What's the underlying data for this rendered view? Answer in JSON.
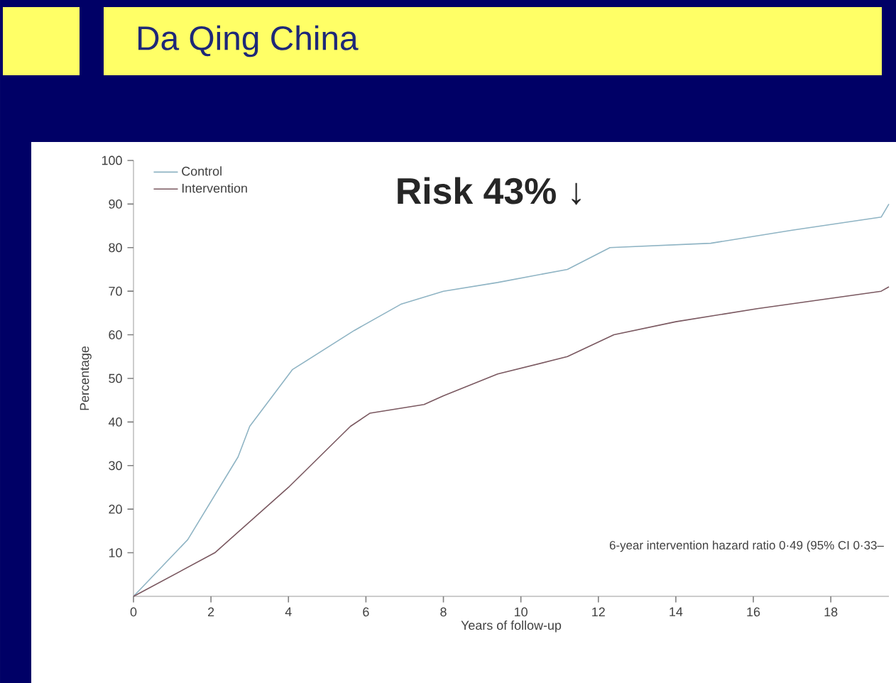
{
  "chart_data": {
    "type": "line",
    "title": "Da Qing China",
    "xlabel": "Years of follow-up",
    "ylabel": "Percentage",
    "xlim": [
      0,
      19.5
    ],
    "xticks": [
      0,
      2,
      4,
      6,
      8,
      10,
      12,
      14,
      16,
      18
    ],
    "ylim": [
      0,
      100
    ],
    "yticks": [
      10,
      20,
      30,
      40,
      50,
      60,
      70,
      80,
      90,
      100
    ],
    "legend": "top left",
    "grid": false,
    "marker": "none",
    "line_style": "solid",
    "annotations": [
      "Risk 43% ↓",
      "6-year intervention hazard ratio 0·49 (95% CI 0·33–"
    ],
    "series": [
      {
        "name": "Control",
        "color": "#8fb4c4",
        "x": [
          0,
          1.4,
          2.7,
          3,
          4.1,
          5.7,
          6.9,
          8,
          9.4,
          11.2,
          12.3,
          14.9,
          17,
          19.3,
          19.5
        ],
        "values": [
          0,
          13,
          32,
          39,
          52,
          61,
          67,
          70,
          72,
          75,
          80,
          81,
          84,
          87,
          90
        ]
      },
      {
        "name": "Intervention",
        "color": "#7a5860",
        "x": [
          0,
          2.1,
          4,
          5.6,
          6.1,
          7.5,
          8,
          9.4,
          11.2,
          12.4,
          14,
          16.1,
          19.3,
          19.5
        ],
        "values": [
          0,
          10,
          25,
          39,
          42,
          44,
          46,
          51,
          55,
          60,
          63,
          66,
          70,
          71
        ]
      }
    ]
  }
}
